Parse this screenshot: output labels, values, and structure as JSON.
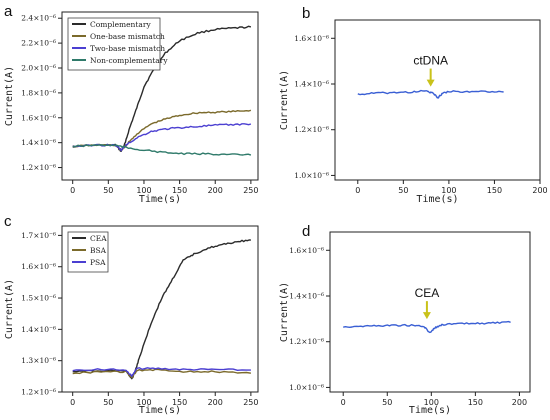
{
  "chart_data": [
    {
      "panel": "a",
      "type": "line",
      "xlabel": "Time(s)",
      "ylabel": "Current(A)",
      "xlim": [
        -15,
        260
      ],
      "ylim": [
        1.1e-06,
        2.45e-06
      ],
      "xticks": [
        0,
        50,
        100,
        150,
        200,
        250
      ],
      "xtick_labels": [
        "0",
        "50",
        "100",
        "150",
        "200",
        "250"
      ],
      "yticks": [
        1.2e-06,
        1.4e-06,
        1.6e-06,
        1.8e-06,
        2e-06,
        2.2e-06,
        2.4e-06
      ],
      "ytick_labels": [
        "1.2×10⁻⁶",
        "1.4×10⁻⁶",
        "1.6×10⁻⁶",
        "1.8×10⁻⁶",
        "2.0×10⁻⁶",
        "2.2×10⁻⁶",
        "2.4×10⁻⁶"
      ],
      "legend": "top-left",
      "series": [
        {
          "name": "Complementary",
          "color": "#2b2b2b",
          "x": [
            0,
            30,
            60,
            68,
            72,
            80,
            90,
            100,
            115,
            130,
            150,
            175,
            200,
            225,
            250
          ],
          "y": [
            1.37e-06,
            1.38e-06,
            1.38e-06,
            1.33e-06,
            1.37e-06,
            1.52e-06,
            1.68e-06,
            1.85e-06,
            2e-06,
            2.12e-06,
            2.22e-06,
            2.28e-06,
            2.31e-06,
            2.32e-06,
            2.33e-06
          ]
        },
        {
          "name": "One-base mismatch",
          "color": "#7b6a2b",
          "x": [
            0,
            30,
            60,
            68,
            75,
            90,
            110,
            130,
            150,
            175,
            200,
            225,
            250
          ],
          "y": [
            1.37e-06,
            1.38e-06,
            1.38e-06,
            1.34e-06,
            1.38e-06,
            1.47e-06,
            1.55e-06,
            1.59e-06,
            1.62e-06,
            1.64e-06,
            1.645e-06,
            1.65e-06,
            1.66e-06
          ]
        },
        {
          "name": "Two-base mismatch",
          "color": "#4b3fd1",
          "x": [
            0,
            30,
            60,
            68,
            75,
            90,
            110,
            130,
            150,
            175,
            200,
            225,
            250
          ],
          "y": [
            1.37e-06,
            1.38e-06,
            1.38e-06,
            1.34e-06,
            1.38e-06,
            1.44e-06,
            1.49e-06,
            1.51e-06,
            1.52e-06,
            1.53e-06,
            1.54e-06,
            1.545e-06,
            1.55e-06
          ]
        },
        {
          "name": "Non-complementary",
          "color": "#2f7a6a",
          "x": [
            0,
            30,
            60,
            75,
            100,
            130,
            160,
            190,
            220,
            250
          ],
          "y": [
            1.37e-06,
            1.38e-06,
            1.38e-06,
            1.36e-06,
            1.34e-06,
            1.32e-06,
            1.31e-06,
            1.31e-06,
            1.305e-06,
            1.3e-06
          ]
        }
      ]
    },
    {
      "panel": "b",
      "type": "line",
      "xlabel": "Time(s)",
      "ylabel": "Current(A)",
      "xlim": [
        -25,
        200
      ],
      "ylim": [
        9.8e-07,
        1.68e-06
      ],
      "xticks": [
        0,
        50,
        100,
        150,
        200
      ],
      "xtick_labels": [
        "0",
        "50",
        "100",
        "150",
        "200"
      ],
      "yticks": [
        1e-06,
        1.2e-06,
        1.4e-06,
        1.6e-06
      ],
      "ytick_labels": [
        "1.0×10⁻⁶",
        "1.2×10⁻⁶",
        "1.4×10⁻⁶",
        "1.6×10⁻⁶"
      ],
      "annotation": {
        "text": "ctDNA",
        "x": 80,
        "y": 1.38e-06
      },
      "series": [
        {
          "color": "#3a5fd4",
          "x": [
            0,
            20,
            40,
            60,
            75,
            82,
            88,
            93,
            100,
            120,
            140,
            160
          ],
          "y": [
            1.355e-06,
            1.36e-06,
            1.362e-06,
            1.365e-06,
            1.37e-06,
            1.36e-06,
            1.34e-06,
            1.36e-06,
            1.368e-06,
            1.365e-06,
            1.368e-06,
            1.365e-06
          ]
        }
      ]
    },
    {
      "panel": "c",
      "type": "line",
      "xlabel": "Time(s)",
      "ylabel": "Current(A)",
      "xlim": [
        -15,
        260
      ],
      "ylim": [
        1.2e-06,
        1.73e-06
      ],
      "xticks": [
        0,
        50,
        100,
        150,
        200,
        250
      ],
      "xtick_labels": [
        "0",
        "50",
        "100",
        "150",
        "200",
        "250"
      ],
      "yticks": [
        1.2e-06,
        1.3e-06,
        1.4e-06,
        1.5e-06,
        1.6e-06,
        1.7e-06
      ],
      "ytick_labels": [
        "1.2×10⁻⁶",
        "1.3×10⁻⁶",
        "1.4×10⁻⁶",
        "1.5×10⁻⁶",
        "1.6×10⁻⁶",
        "1.7×10⁻⁶"
      ],
      "legend": "top-left",
      "series": [
        {
          "name": "CEA",
          "color": "#2b2b2b",
          "x": [
            0,
            40,
            75,
            83,
            88,
            95,
            110,
            125,
            140,
            155,
            170,
            190,
            210,
            230,
            250
          ],
          "y": [
            1.265e-06,
            1.268e-06,
            1.268e-06,
            1.24e-06,
            1.27e-06,
            1.32e-06,
            1.42e-06,
            1.5e-06,
            1.56e-06,
            1.62e-06,
            1.64e-06,
            1.66e-06,
            1.67e-06,
            1.68e-06,
            1.685e-06
          ]
        },
        {
          "name": "BSA",
          "color": "#7b6a2b",
          "x": [
            0,
            40,
            75,
            83,
            90,
            120,
            160,
            200,
            250
          ],
          "y": [
            1.26e-06,
            1.265e-06,
            1.265e-06,
            1.245e-06,
            1.27e-06,
            1.27e-06,
            1.265e-06,
            1.265e-06,
            1.26e-06
          ]
        },
        {
          "name": "PSA",
          "color": "#4b3fd1",
          "x": [
            0,
            40,
            75,
            83,
            90,
            120,
            160,
            200,
            250
          ],
          "y": [
            1.27e-06,
            1.272e-06,
            1.27e-06,
            1.25e-06,
            1.275e-06,
            1.275e-06,
            1.272e-06,
            1.272e-06,
            1.27e-06
          ]
        }
      ]
    },
    {
      "panel": "d",
      "type": "line",
      "xlabel": "Time(s)",
      "ylabel": "Current(A)",
      "xlim": [
        -15,
        212
      ],
      "ylim": [
        9.8e-07,
        1.68e-06
      ],
      "xticks": [
        0,
        50,
        100,
        150,
        200
      ],
      "xtick_labels": [
        "0",
        "50",
        "100",
        "150",
        "200"
      ],
      "yticks": [
        1e-06,
        1.2e-06,
        1.4e-06,
        1.6e-06
      ],
      "ytick_labels": [
        "1.0×10⁻⁶",
        "1.2×10⁻⁶",
        "1.4×10⁻⁶",
        "1.6×10⁻⁶"
      ],
      "annotation": {
        "text": "CEA",
        "x": 95,
        "y": 1.29e-06
      },
      "series": [
        {
          "color": "#3a5fd4",
          "x": [
            0,
            20,
            40,
            60,
            80,
            92,
            98,
            104,
            112,
            130,
            150,
            170,
            190
          ],
          "y": [
            1.265e-06,
            1.268e-06,
            1.27e-06,
            1.272e-06,
            1.272e-06,
            1.265e-06,
            1.24e-06,
            1.26e-06,
            1.275e-06,
            1.278e-06,
            1.28e-06,
            1.282e-06,
            1.285e-06
          ]
        }
      ]
    }
  ]
}
